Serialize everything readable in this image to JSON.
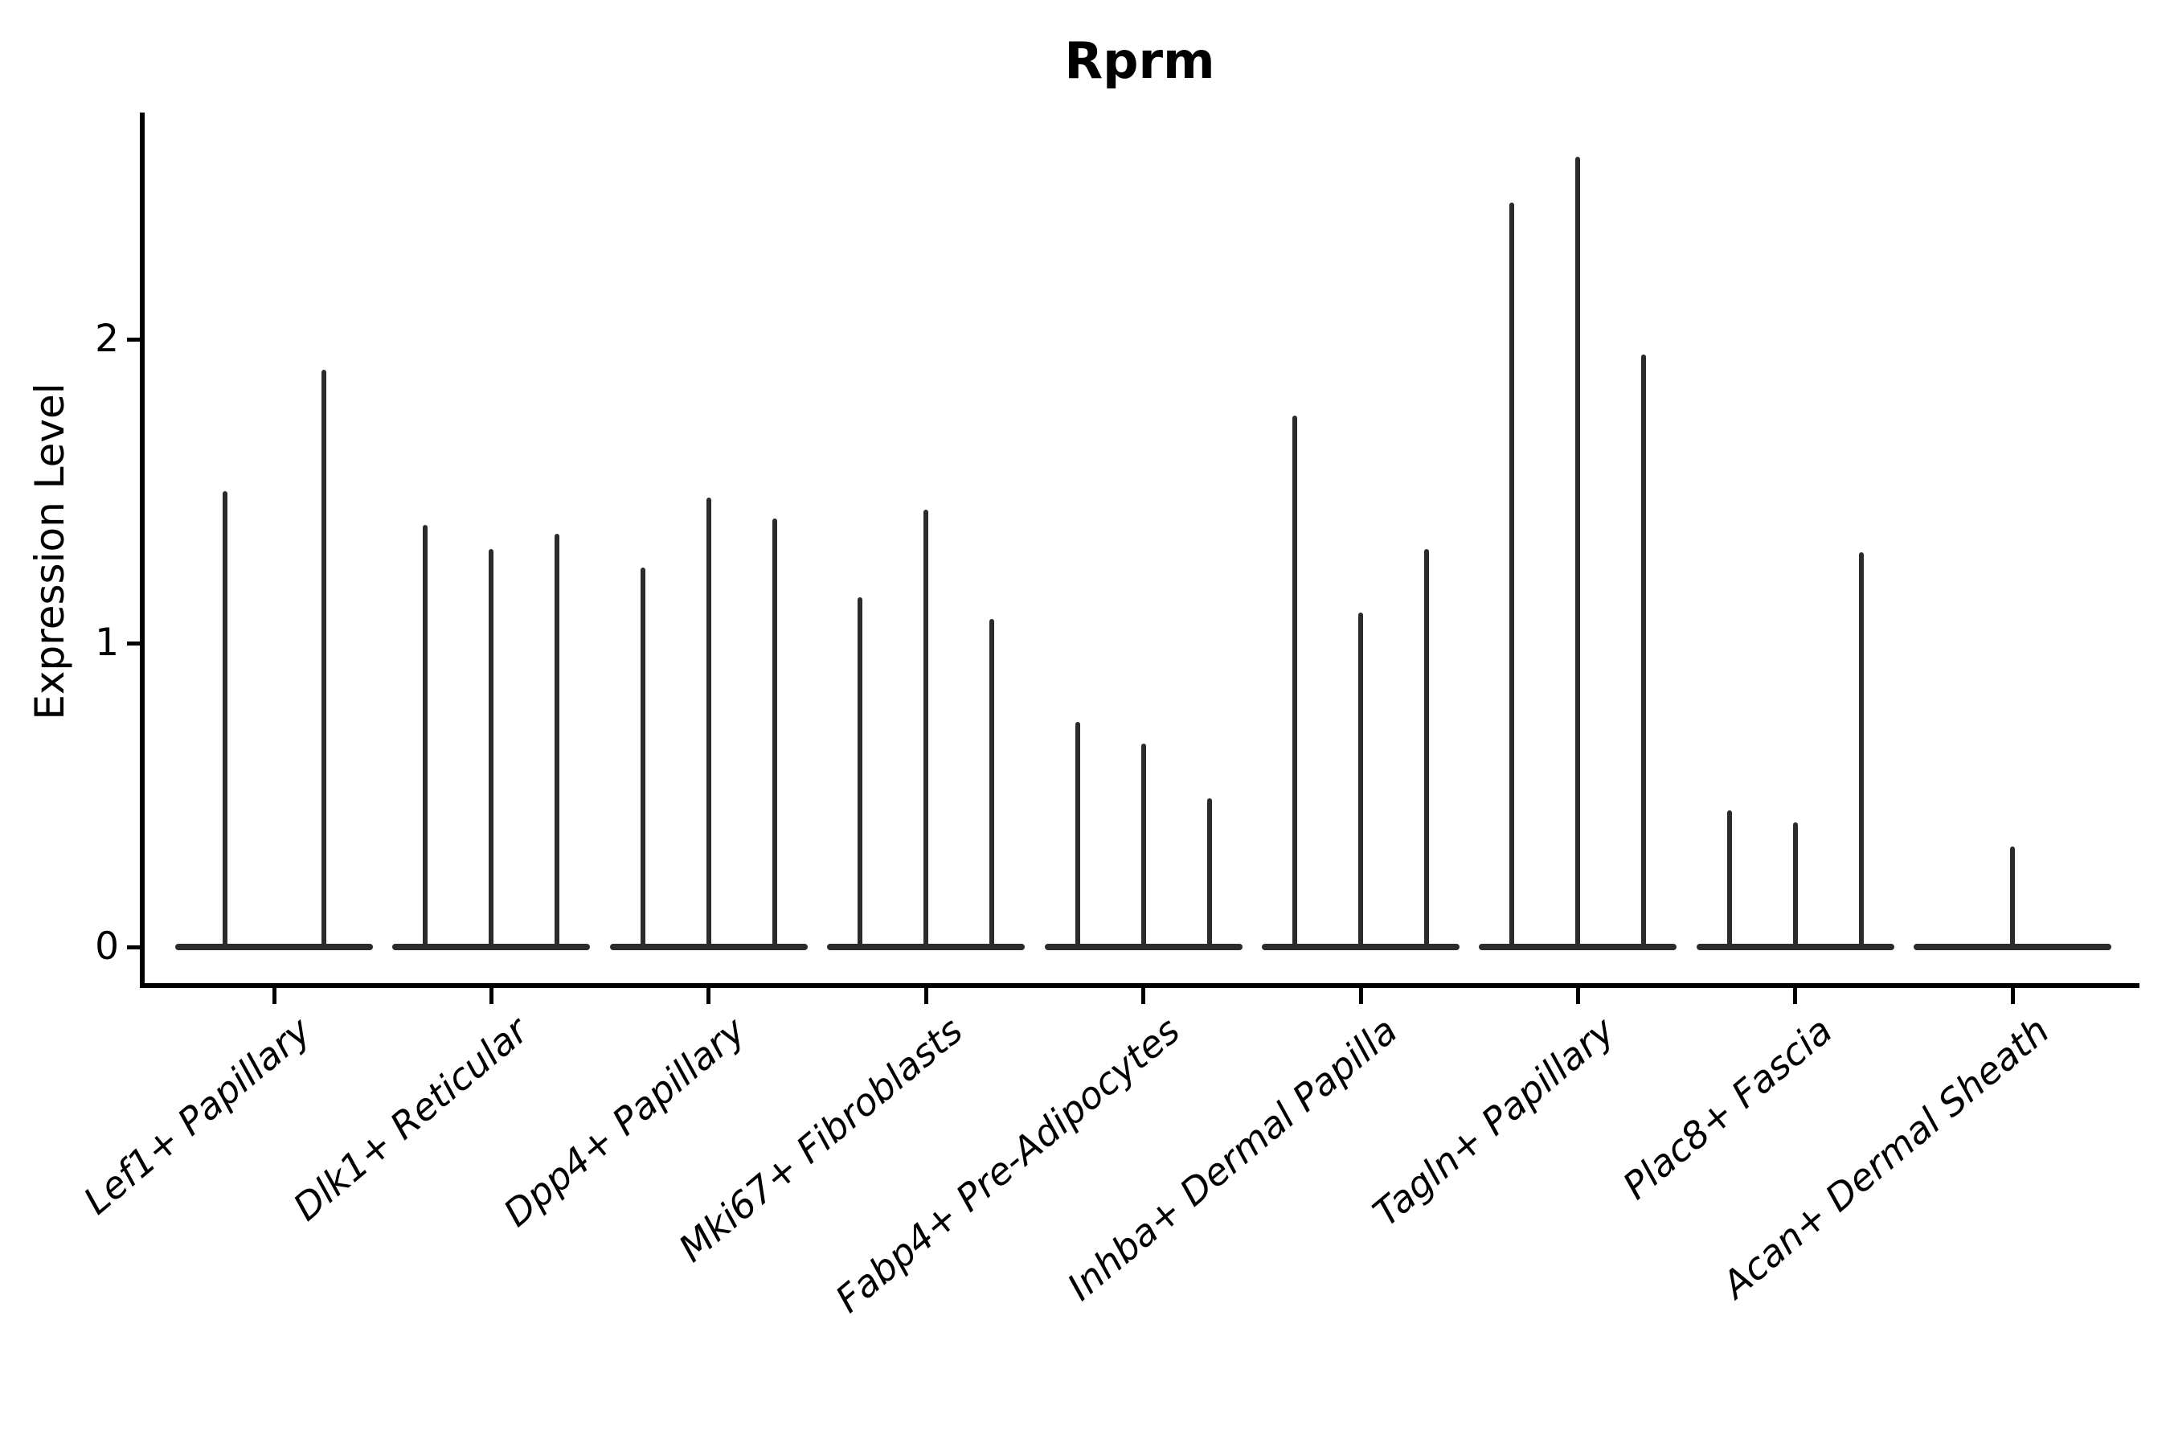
{
  "figure": {
    "title": "Rprm"
  },
  "y_axis": {
    "label": "Expression Level",
    "tick_labels": [
      "0",
      "1",
      "2"
    ]
  },
  "x_axis": {
    "tick_labels": [
      "Lef1+ Papillary",
      "Dlk1+ Reticular",
      "Dpp4+ Papillary",
      "Mki67+ Fibroblasts",
      "Fabp4+ Pre-Adipocytes",
      "Inhba+ Dermal Papilla",
      "Tagln+ Papillary",
      "Plac8+ Fascia",
      "Acan+ Dermal Sheath"
    ]
  },
  "chart_data": {
    "type": "violin",
    "title": "Rprm",
    "xlabel": "",
    "ylabel": "Expression Level",
    "yticks": [
      0,
      1,
      2
    ],
    "ylim": [
      -0.12,
      2.75
    ],
    "grid": false,
    "legend": null,
    "description": "Thin spike-shaped violins; each violin has a wide flat base at expression 0 and a thin vertical tail reaching its maximum expression value.",
    "categories": [
      "Lef1+ Papillary",
      "Dlk1+ Reticular",
      "Dpp4+ Papillary",
      "Mki67+ Fibroblasts",
      "Fabp4+ Pre-Adipocytes",
      "Inhba+ Dermal Papilla",
      "Tagln+ Papillary",
      "Plac8+ Fascia",
      "Acan+ Dermal Sheath"
    ],
    "groups": [
      {
        "category": "Lef1+ Papillary",
        "violin_max_values": [
          1.5,
          1.9
        ]
      },
      {
        "category": "Dlk1+ Reticular",
        "violin_max_values": [
          1.39,
          1.31,
          1.36
        ]
      },
      {
        "category": "Dpp4+ Papillary",
        "violin_max_values": [
          1.25,
          1.48,
          1.41
        ]
      },
      {
        "category": "Mki67+ Fibroblasts",
        "violin_max_values": [
          1.15,
          1.44,
          1.08
        ]
      },
      {
        "category": "Fabp4+ Pre-Adipocytes",
        "violin_max_values": [
          0.74,
          0.67,
          0.49
        ]
      },
      {
        "category": "Inhba+ Dermal Papilla",
        "violin_max_values": [
          1.75,
          1.1,
          1.31
        ]
      },
      {
        "category": "Tagln+ Papillary",
        "violin_max_values": [
          2.45,
          2.6,
          1.95
        ]
      },
      {
        "category": "Plac8+ Fascia",
        "violin_max_values": [
          0.45,
          0.41,
          1.3
        ]
      },
      {
        "category": "Acan+ Dermal Sheath",
        "violin_max_values": [
          0.33
        ]
      }
    ],
    "colors": {
      "violin_stroke": "#2b2b2b",
      "axis": "#000000",
      "background": "#ffffff"
    }
  }
}
